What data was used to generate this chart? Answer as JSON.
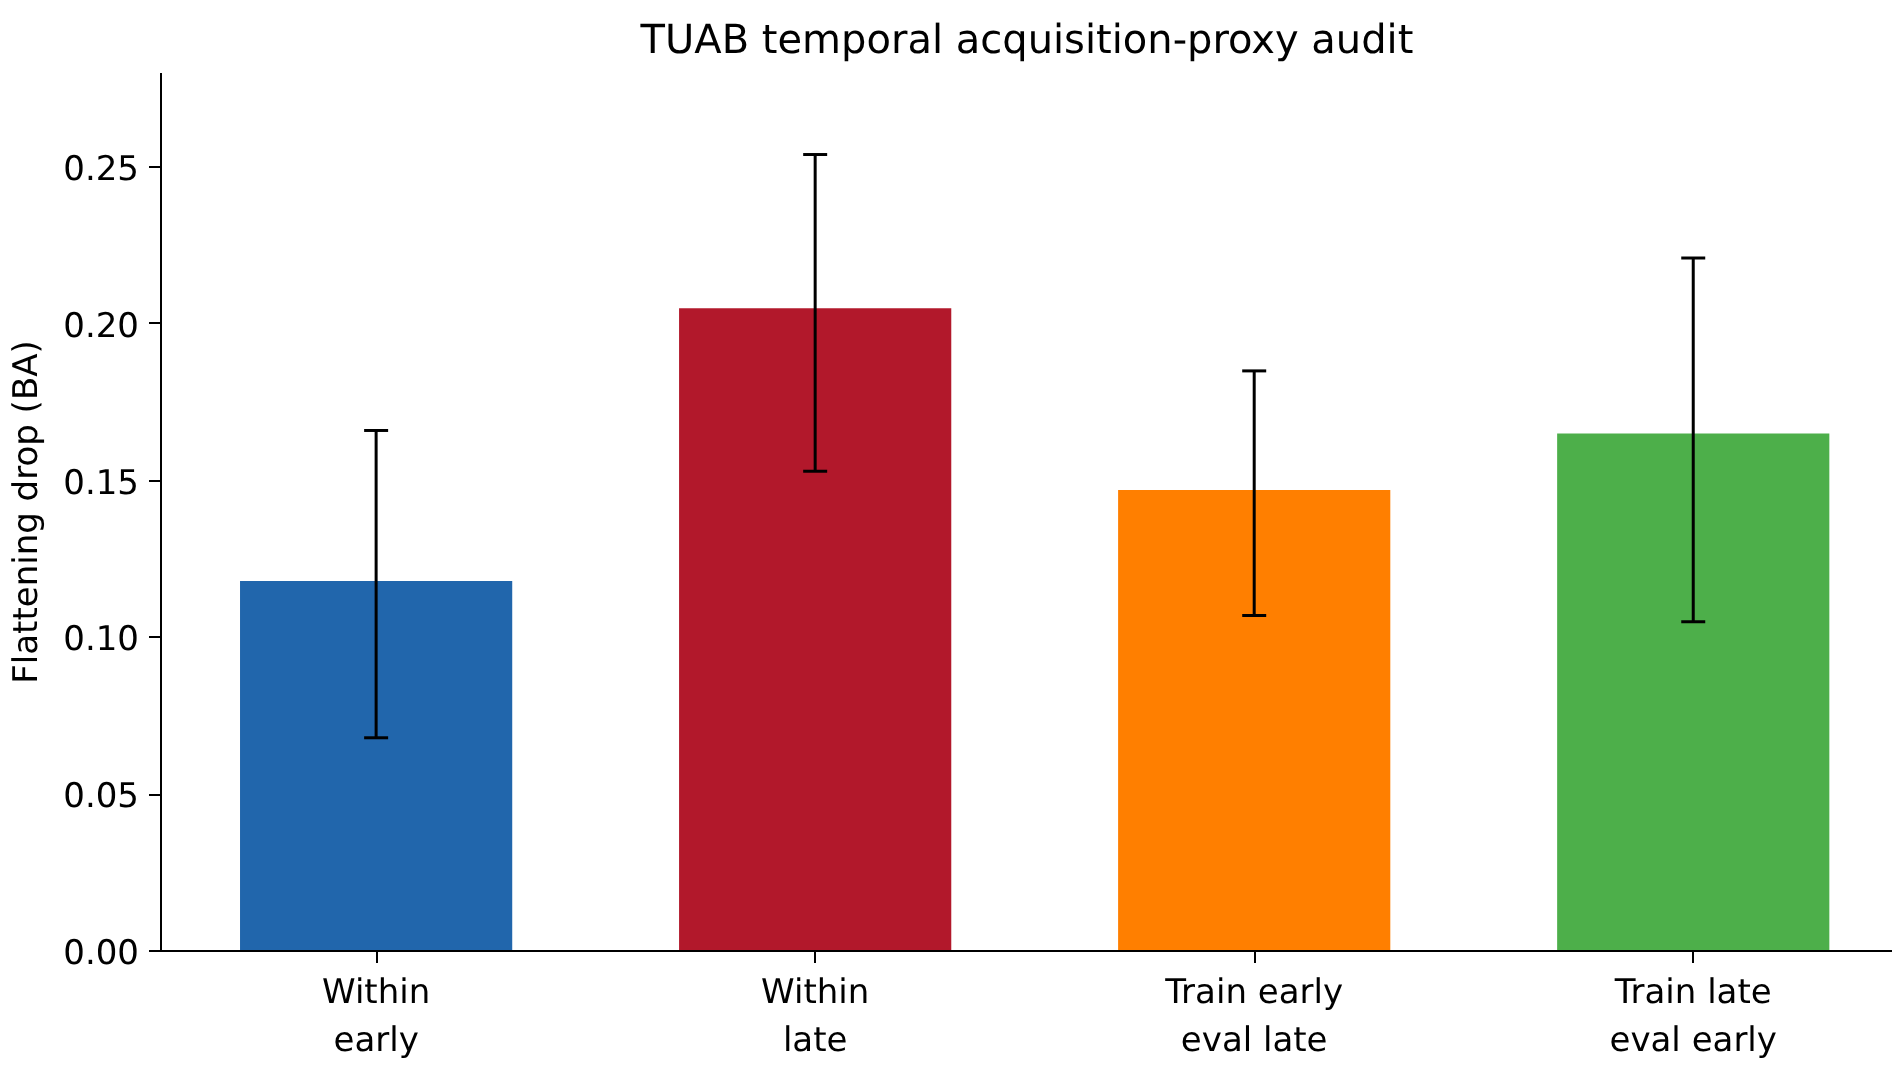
{
  "chart_data": {
    "type": "bar",
    "title": "TUAB temporal acquisition-proxy audit",
    "ylabel": "Flattening drop (BA)",
    "categories": [
      "Within\nearly",
      "Within\nlate",
      "Train early\neval late",
      "Train late\neval early"
    ],
    "values": [
      0.118,
      0.205,
      0.147,
      0.165
    ],
    "colors": [
      "#2166ac",
      "#b2182b",
      "#ff7f00",
      "#4daf4a"
    ],
    "errors": [
      [
        0.068,
        0.166
      ],
      [
        0.153,
        0.254
      ],
      [
        0.107,
        0.185
      ],
      [
        0.105,
        0.221
      ]
    ],
    "ylim": [
      0,
      0.28
    ],
    "yticks": [
      {
        "value": 0,
        "label": "0.00"
      },
      {
        "value": 0.05,
        "label": "0.05"
      },
      {
        "value": 0.1,
        "label": "0.10"
      },
      {
        "value": 0.15,
        "label": "0.15"
      },
      {
        "value": 0.2,
        "label": "0.20"
      },
      {
        "value": 0.25,
        "label": "0.25"
      }
    ],
    "grid": false
  }
}
